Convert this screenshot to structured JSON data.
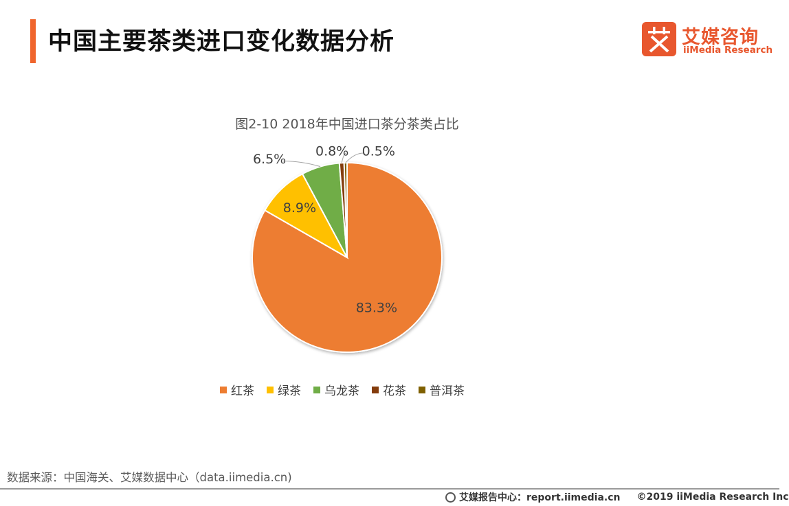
{
  "header": {
    "title": "中国主要茶类进口变化数据分析"
  },
  "logo": {
    "cn": "艾媒咨询",
    "en": "iiMedia Research",
    "box_char": "艾",
    "icon": "iimedia-logo-icon"
  },
  "colors": {
    "accent": "#f0652d",
    "logo": "#e8572e"
  },
  "chart_data": {
    "type": "pie",
    "title": "图2-10 2018年中国进口茶分茶类占比",
    "categories": [
      "红茶",
      "绿茶",
      "乌龙茶",
      "花茶",
      "普洱茶"
    ],
    "values": [
      83.3,
      8.9,
      6.5,
      0.8,
      0.5
    ],
    "labels": [
      "83.3%",
      "8.9%",
      "6.5%",
      "0.8%",
      "0.5%"
    ],
    "colors": [
      "#ed7d31",
      "#ffc000",
      "#70ad47",
      "#843c0c",
      "#7f6000"
    ],
    "legend": "bottom"
  },
  "source": "数据来源：中国海关、艾媒数据中心（data.iimedia.cn)",
  "footer": {
    "report": "艾媒报告中心：report.iimedia.cn",
    "copyright": "©2019  iiMedia Research  Inc",
    "icon": "globe-icon"
  }
}
